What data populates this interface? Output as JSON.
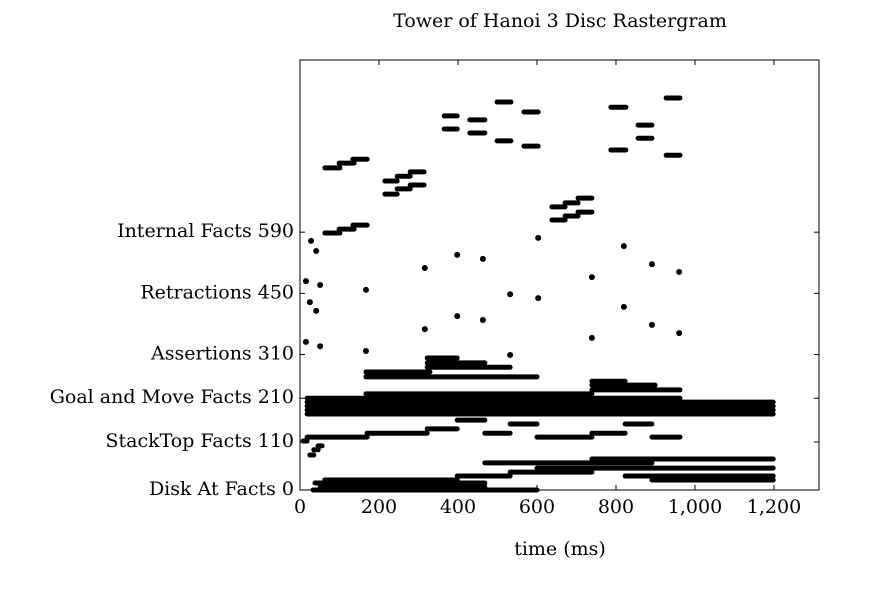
{
  "chart_data": {
    "type": "raster",
    "title": "Tower of Hanoi 3 Disc Rastergram",
    "xlabel": "time (ms)",
    "xlim": [
      0,
      1314
    ],
    "ylim": [
      0,
      984
    ],
    "xticks": [
      0,
      200,
      400,
      600,
      800,
      {
        "value": 1000,
        "label": "1,000"
      },
      {
        "value": 1200,
        "label": "1,200"
      }
    ],
    "yticks": [
      {
        "value": 0,
        "label": "Disk At Facts 0"
      },
      {
        "value": 110,
        "label": "StackTop Facts 110"
      },
      {
        "value": 210,
        "label": "Goal and Move Facts 210"
      },
      {
        "value": 310,
        "label": "Assertions 310"
      },
      {
        "value": 450,
        "label": "Retractions 450"
      },
      {
        "value": 590,
        "label": "Internal Facts 590"
      }
    ],
    "color": "#000000",
    "segments": {
      "start": [
        63,
        99,
        134,
        63,
        99,
        134,
        215,
        215,
        246,
        246,
        279,
        279,
        365,
        365,
        430,
        430,
        499,
        499,
        567,
        567,
        638,
        638,
        671,
        671,
        704,
        704,
        787,
        787,
        856,
        856,
        927,
        927,
        167,
        167,
        322,
        322,
        322,
        18,
        18,
        18,
        18,
        18,
        167,
        739,
        739,
        739,
        18,
        170,
        322,
        398,
        468,
        532,
        600,
        739,
        823,
        891,
        8,
        25,
        35,
        46,
        38,
        51,
        33,
        63,
        398,
        532,
        468,
        600,
        739,
        823,
        891
      ],
      "end": [
        101,
        137,
        170,
        101,
        137,
        170,
        246,
        246,
        279,
        279,
        314,
        314,
        398,
        398,
        468,
        468,
        534,
        534,
        603,
        603,
        671,
        671,
        704,
        704,
        739,
        739,
        825,
        825,
        891,
        891,
        962,
        962,
        600,
        329,
        398,
        468,
        532,
        962,
        1198,
        1198,
        1198,
        1198,
        739,
        962,
        899,
        823,
        170,
        322,
        398,
        468,
        532,
        600,
        739,
        823,
        891,
        962,
        18,
        35,
        46,
        56,
        468,
        468,
        600,
        398,
        532,
        739,
        891,
        1198,
        1198,
        1198,
        1198
      ],
      "y": [
        737,
        748,
        757,
        588,
        597,
        606,
        677,
        707,
        689,
        718,
        698,
        728,
        856,
        826,
        847,
        817,
        888,
        799,
        865,
        787,
        618,
        648,
        627,
        657,
        636,
        668,
        876,
        778,
        835,
        805,
        897,
        766,
        259,
        270,
        302,
        291,
        281,
        210,
        201,
        192,
        183,
        174,
        220,
        229,
        240,
        249,
        121,
        130,
        140,
        160,
        130,
        151,
        121,
        130,
        151,
        121,
        112,
        80,
        92,
        101,
        16,
        7,
        0,
        23,
        32,
        41,
        62,
        50,
        71,
        32,
        23
      ]
    },
    "points": {
      "x": [
        28,
        41,
        15,
        51,
        25,
        41,
        15,
        51,
        167,
        167,
        316,
        316,
        398,
        398,
        463,
        463,
        532,
        532,
        603,
        603,
        739,
        739,
        820,
        820,
        891,
        891,
        960,
        960
      ],
      "y": [
        570,
        547,
        478,
        469,
        430,
        410,
        339,
        329,
        458,
        318,
        508,
        368,
        538,
        398,
        529,
        389,
        448,
        309,
        577,
        439,
        487,
        348,
        558,
        419,
        517,
        378,
        499,
        359
      ]
    }
  }
}
